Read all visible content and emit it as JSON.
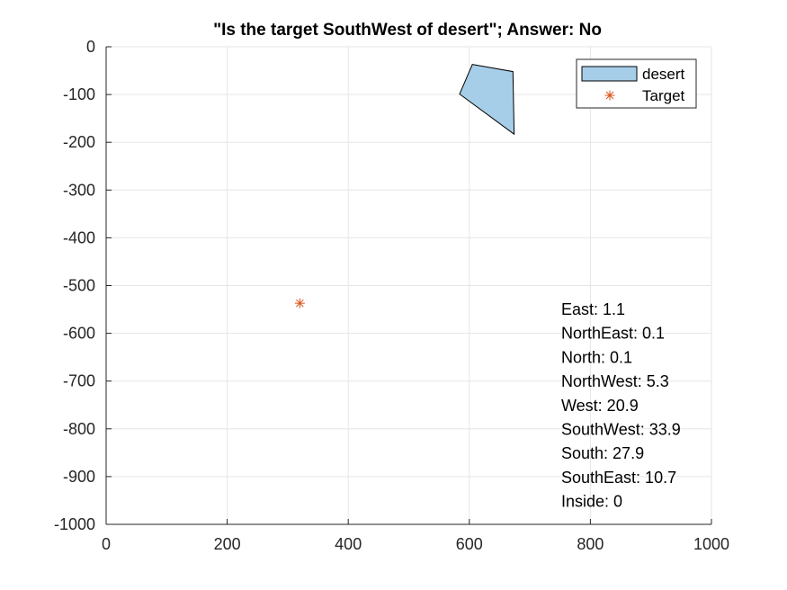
{
  "chart_data": {
    "type": "scatter",
    "title": "\"Is the target SouthWest of desert\"; Answer: No",
    "xlabel": "",
    "ylabel": "",
    "xlim": [
      0,
      1000
    ],
    "ylim": [
      -1000,
      0
    ],
    "xticks": [
      0,
      200,
      400,
      600,
      800,
      1000
    ],
    "yticks": [
      0,
      -100,
      -200,
      -300,
      -400,
      -500,
      -600,
      -700,
      -800,
      -900,
      -1000
    ],
    "grid": true,
    "legend_location": "top-right",
    "series": [
      {
        "name": "desert",
        "kind": "polygon",
        "fill_color": "#a6cee8",
        "edge_color": "#000000",
        "points": [
          [
            605,
            -37
          ],
          [
            672,
            -52
          ],
          [
            674,
            -183
          ],
          [
            584,
            -99
          ]
        ]
      },
      {
        "name": "Target",
        "kind": "marker",
        "marker": "asterisk",
        "color": "#d95319",
        "points": [
          [
            320,
            -537
          ]
        ]
      }
    ],
    "annotations": [
      "East: 1.1",
      "NorthEast: 0.1",
      "North: 0.1",
      "NorthWest: 5.3",
      "West: 20.9",
      "SouthWest: 33.9",
      "South: 27.9",
      "SouthEast: 10.7",
      "Inside: 0"
    ]
  }
}
